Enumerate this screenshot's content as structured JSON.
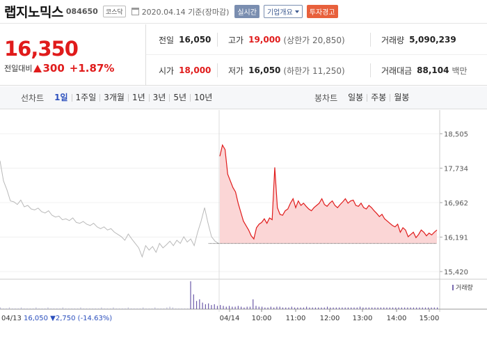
{
  "header": {
    "name": "랩지노믹스",
    "code": "084650",
    "market": "코스닥",
    "date": "2020.04.14",
    "basis": "기준(장마감)",
    "realtime_label": "실시간",
    "corp_label": "기업개요",
    "warning_label": "투자경고"
  },
  "price": {
    "current": "16,350",
    "change_label": "전일대비",
    "change": "300",
    "change_pct": "+1.87%"
  },
  "metrics": {
    "prev_label": "전일",
    "prev": "16,050",
    "high_label": "고가",
    "high": "19,000",
    "upper_limit": "(상한가 20,850)",
    "volume_label": "거래량",
    "volume": "5,090,239",
    "open_label": "시가",
    "open": "18,000",
    "low_label": "저가",
    "low": "16,050",
    "lower_limit": "(하한가 11,250)",
    "amount_label": "거래대금",
    "amount": "88,104",
    "amount_unit": "백만"
  },
  "tabs": {
    "line_title": "선차트",
    "line_items": [
      "1일",
      "1주일",
      "3개월",
      "1년",
      "3년",
      "5년",
      "10년"
    ],
    "candle_title": "봉차트",
    "candle_items": [
      "일봉",
      "주봉",
      "월봉"
    ]
  },
  "colors": {
    "up": "#e01b1b",
    "accent": "#2b4fbd",
    "warning": "#e8603c"
  },
  "chart_data": {
    "type": "line",
    "y_ticks": [
      "18,505",
      "17,734",
      "16,962",
      "16,191",
      "15,420"
    ],
    "ylim": [
      15420,
      18505
    ],
    "x_ticks": [
      "04/14",
      "10:00",
      "11:00",
      "12:00",
      "13:00",
      "14:00",
      "15:00"
    ],
    "prev_day": {
      "date": "04/13",
      "close": "16,050",
      "change": "2,750",
      "change_pct": "(-14.63%)"
    },
    "prev_close": 16050,
    "volume_legend": "거래량",
    "series": [
      {
        "name": "04/13",
        "values": [
          17900,
          17450,
          17250,
          17000,
          16980,
          16920,
          17020,
          16870,
          16900,
          16820,
          16800,
          16840,
          16760,
          16730,
          16780,
          16680,
          16640,
          16660,
          16580,
          16600,
          16560,
          16620,
          16520,
          16500,
          16540,
          16480,
          16450,
          16500,
          16420,
          16380,
          16420,
          16350,
          16380,
          16300,
          16250,
          16200,
          16120,
          16260,
          16150,
          16050,
          15950,
          15750,
          16000,
          15900,
          15980,
          15850,
          16050,
          15950,
          16020,
          16100,
          16000,
          16120,
          16050,
          16200,
          16080,
          16150,
          16000,
          16300,
          16550,
          16850,
          16500,
          16200,
          16100,
          16050
        ]
      },
      {
        "name": "04/14",
        "values": [
          18000,
          18250,
          18150,
          17600,
          17450,
          17300,
          17200,
          16950,
          16750,
          16550,
          16450,
          16350,
          16220,
          16150,
          16400,
          16480,
          16520,
          16600,
          16500,
          16620,
          16580,
          17750,
          16850,
          16700,
          16680,
          16780,
          16820,
          16950,
          17050,
          16850,
          17000,
          16900,
          16950,
          16880,
          16820,
          16780,
          16850,
          16900,
          16950,
          17050,
          16920,
          16880,
          16950,
          17000,
          16900,
          16850,
          16920,
          16980,
          17050,
          16950,
          17000,
          17020,
          16900,
          16880,
          16950,
          16850,
          16820,
          16900,
          16850,
          16780,
          16720,
          16650,
          16700,
          16600,
          16550,
          16500,
          16450,
          16420,
          16480,
          16300,
          16400,
          16350,
          16200,
          16250,
          16300,
          16180,
          16250,
          16350,
          16300,
          16220,
          16280,
          16240,
          16300,
          16350
        ]
      }
    ],
    "volume_values": [
      2,
      1,
      1,
      2,
      1,
      1,
      1,
      2,
      1,
      1,
      1,
      1,
      2,
      1,
      1,
      1,
      2,
      1,
      1,
      1,
      1,
      2,
      1,
      1,
      1,
      1,
      1,
      2,
      1,
      1,
      1,
      1,
      1,
      1,
      2,
      1,
      1,
      1,
      2,
      1,
      1,
      1,
      1,
      2,
      1,
      1,
      1,
      1,
      2,
      1,
      1,
      1,
      2,
      1,
      1,
      1,
      2,
      3,
      2,
      1,
      1,
      1,
      1,
      1,
      34,
      18,
      10,
      12,
      8,
      6,
      7,
      5,
      6,
      4,
      5,
      4,
      3,
      4,
      3,
      3,
      4,
      3,
      2,
      3,
      3,
      12,
      4,
      3,
      3,
      2,
      2,
      3,
      2,
      3,
      3,
      2,
      2,
      2,
      3,
      2,
      2,
      2,
      2,
      3,
      2,
      2,
      2,
      2,
      2,
      2,
      3,
      2,
      2,
      2,
      2,
      2,
      2,
      2,
      2,
      2,
      2,
      3,
      2,
      2,
      2,
      2,
      2,
      2,
      2,
      2,
      2,
      2,
      2,
      2,
      2,
      2,
      2,
      2,
      2,
      2,
      2,
      2,
      2,
      2,
      2,
      2,
      2,
      2
    ]
  }
}
